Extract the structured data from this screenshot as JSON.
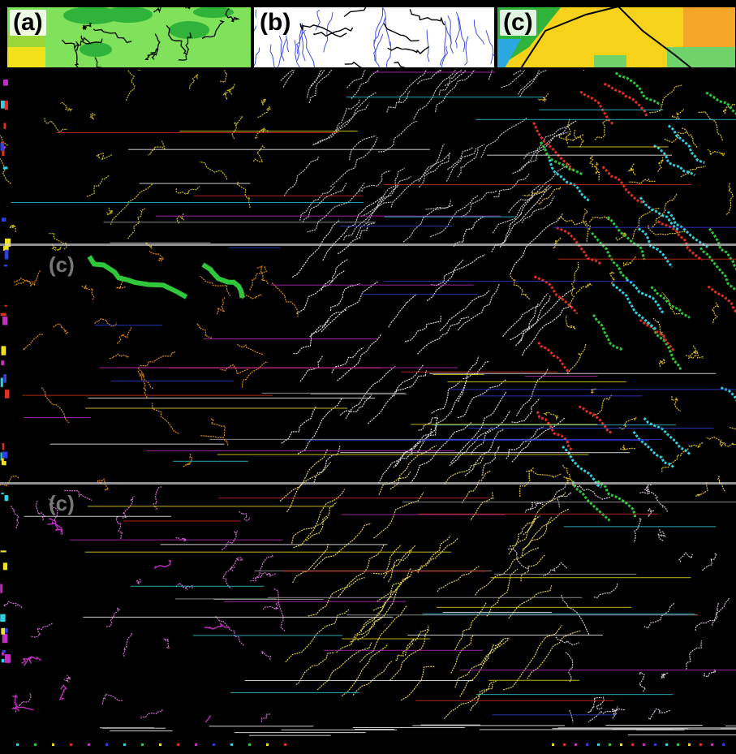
{
  "panels": [
    {
      "label": "(a)",
      "style": "filled",
      "base": "#7fe25a",
      "dark": "#2fb33a",
      "accent": "#f3e21b",
      "line": "#000000"
    },
    {
      "label": "(b)",
      "style": "streamline",
      "base": "#ffffff",
      "line": "#4050e0",
      "border": "#000000"
    },
    {
      "label": "(c)",
      "style": "filled",
      "base": "#f6d21a",
      "dark": "#2fb33a",
      "accent": "#6fd36a",
      "line": "#000000"
    }
  ],
  "grid_rows": [
    {
      "label": "",
      "colors": [
        "#c8b81a",
        "#c0c0c0",
        "#e0c020"
      ]
    },
    {
      "label": "(c)",
      "colors": [
        "#e08a10",
        "#d8d8d8",
        "#e0c020"
      ]
    },
    {
      "label": "(c)",
      "colors": [
        "#d070d0",
        "#e0d050",
        "#d0c0d0"
      ]
    }
  ],
  "colors": {
    "background": "#000000",
    "green": "#2ec83a",
    "red": "#e03020",
    "cyan": "#30d0e0",
    "yellow": "#f0e020",
    "magenta": "#c030c0"
  }
}
